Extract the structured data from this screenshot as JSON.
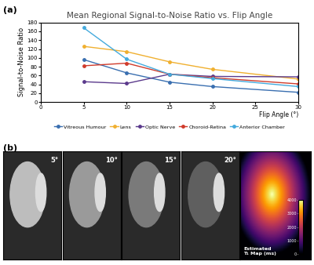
{
  "chart_data": {
    "type": "line",
    "title": "Mean Regional Signal-to-Noise Ratio vs. Flip Angle",
    "x_label": "Flip Angle (°)",
    "y_label": "Signal-to-Noise Ratio",
    "x": [
      5,
      10,
      15,
      20,
      30
    ],
    "series": [
      {
        "name": "Vitreous Humour",
        "color": "#3a6fb0",
        "values": [
          96,
          66,
          45,
          35,
          22
        ]
      },
      {
        "name": "Lens",
        "color": "#f0b030",
        "values": [
          126,
          114,
          91,
          74,
          52
        ]
      },
      {
        "name": "Optic Nerve",
        "color": "#5b3a8c",
        "values": [
          46,
          42,
          63,
          58,
          57
        ]
      },
      {
        "name": "Choroid-Retina",
        "color": "#d03b2b",
        "values": [
          82,
          88,
          63,
          55,
          41
        ]
      },
      {
        "name": "Anterior Chamber",
        "color": "#44aadd",
        "values": [
          168,
          97,
          63,
          53,
          35
        ]
      }
    ],
    "xlim": [
      0,
      30
    ],
    "xticks": [
      0,
      5,
      10,
      15,
      20,
      25,
      30
    ],
    "ylim": [
      0,
      180
    ],
    "yticks": [
      0,
      20,
      40,
      60,
      80,
      100,
      120,
      140,
      160,
      180
    ],
    "marker": "circle",
    "legend": "bottom",
    "grid": false
  },
  "panel_labels": [
    "(a)",
    "(b)"
  ],
  "images": {
    "labels": [
      "5°",
      "10°",
      "15°",
      "20°"
    ],
    "t1_map": {
      "label": "Estimated\nT₁ Map (ms)",
      "range": [
        0,
        4000
      ],
      "ticks": [
        0,
        1000,
        2000,
        3000,
        4000
      ]
    }
  }
}
